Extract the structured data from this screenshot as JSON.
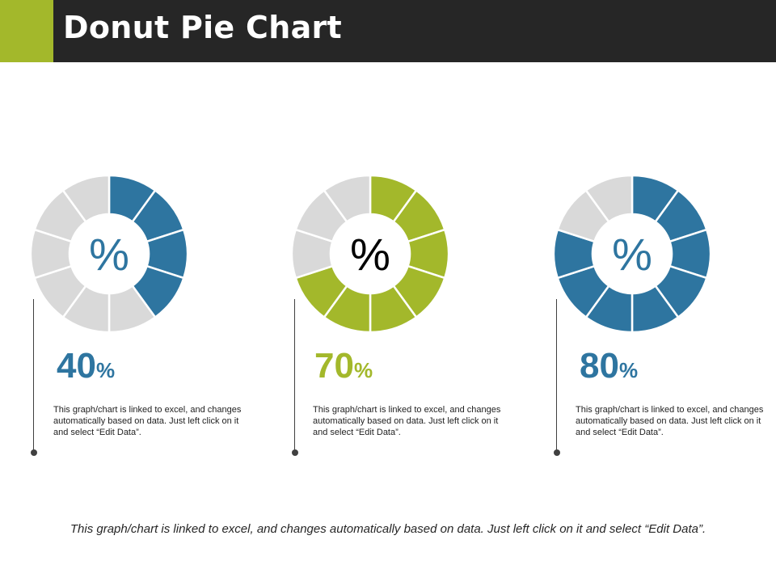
{
  "header": {
    "title": "Donut Pie Chart",
    "accent_color": "#A3B82B",
    "bar_color": "#262626"
  },
  "chart_data": [
    {
      "type": "pie",
      "variant": "segmented-donut",
      "segments_total": 10,
      "value": 40,
      "center_label": "%",
      "value_number": "40",
      "value_symbol": "%",
      "color": "#2E75A0",
      "empty_color": "#D9D9D9",
      "description": "This graph/chart is linked to excel, and changes automatically based on data. Just left click on it and select “Edit Data”."
    },
    {
      "type": "pie",
      "variant": "segmented-donut",
      "segments_total": 10,
      "value": 70,
      "center_label": "%",
      "value_number": "70",
      "value_symbol": "%",
      "color": "#A3B82B",
      "empty_color": "#D9D9D9",
      "description": "This graph/chart is linked to excel, and changes automatically based on data. Just left click on it and select “Edit Data”."
    },
    {
      "type": "pie",
      "variant": "segmented-donut",
      "segments_total": 10,
      "value": 80,
      "center_label": "%",
      "value_number": "80",
      "value_symbol": "%",
      "color": "#2E75A0",
      "empty_color": "#D9D9D9",
      "description": "This graph/chart is linked to excel, and changes automatically based on data. Just left click on it and select “Edit Data”."
    }
  ],
  "footer": {
    "text": "This graph/chart is linked to excel, and changes automatically based on data. Just left click on it and select “Edit Data”."
  }
}
